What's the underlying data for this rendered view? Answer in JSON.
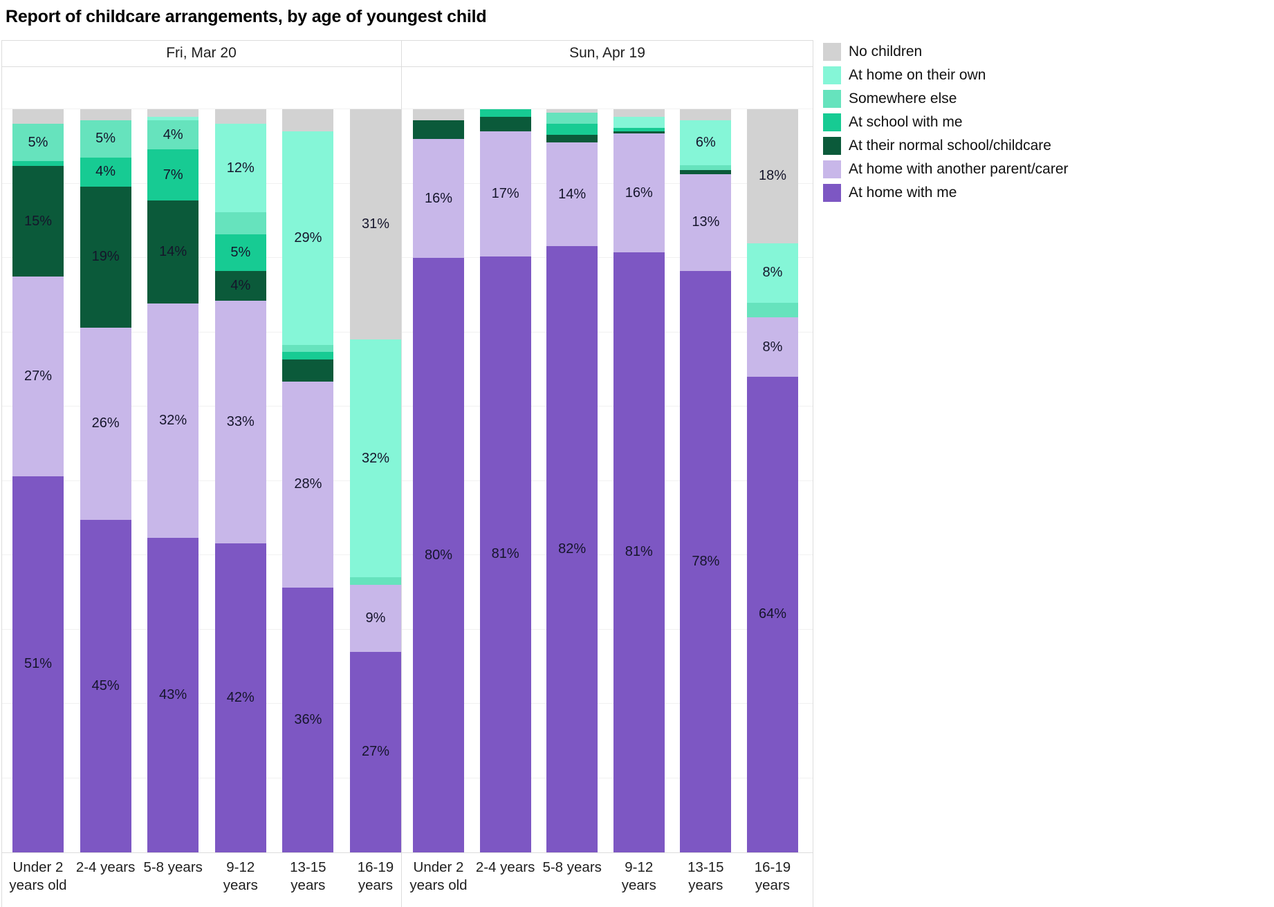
{
  "title": "Report of childcare arrangements, by age of youngest child",
  "palette": {
    "no_children": "#d2d2d2",
    "at_home_own": "#85f6d7",
    "somewhere_else": "#66e3bd",
    "at_school_with_me": "#17cb93",
    "at_their_normal_school": "#0b5a3a",
    "at_home_another_parent": "#c8b7e9",
    "at_home_with_me": "#7d57c3"
  },
  "legend": [
    {
      "key": "no_children",
      "label": "No children"
    },
    {
      "key": "at_home_own",
      "label": "At home on their own"
    },
    {
      "key": "somewhere_else",
      "label": "Somewhere else"
    },
    {
      "key": "at_school_with_me",
      "label": "At school with me"
    },
    {
      "key": "at_their_normal_school",
      "label": "At their normal school/childcare"
    },
    {
      "key": "at_home_another_parent",
      "label": "At home with another parent/carer"
    },
    {
      "key": "at_home_with_me",
      "label": "At home with me"
    }
  ],
  "chart_data": {
    "type": "bar",
    "variant": "stacked-100pct",
    "ylim": [
      0,
      105
    ],
    "grid": "horizontal lines every 10%",
    "legend_position": "top-right",
    "panels": [
      {
        "header": "Fri, Mar 20",
        "bars": [
          {
            "category": [
              "Under 2",
              "years old"
            ],
            "segments": [
              [
                "no_children",
                2,
                ""
              ],
              [
                "somewhere_else",
                5,
                "5%"
              ],
              [
                "at_school_with_me",
                0.7,
                ""
              ],
              [
                "at_their_normal_school",
                15,
                "15%"
              ],
              [
                "at_home_another_parent",
                27,
                "27%"
              ],
              [
                "at_home_with_me",
                51,
                "51%"
              ]
            ]
          },
          {
            "category": [
              "2-4 years"
            ],
            "segments": [
              [
                "no_children",
                1.5,
                ""
              ],
              [
                "somewhere_else",
                5,
                "5%"
              ],
              [
                "at_school_with_me",
                4,
                "4%"
              ],
              [
                "at_their_normal_school",
                19,
                "19%"
              ],
              [
                "at_home_another_parent",
                26,
                "26%"
              ],
              [
                "at_home_with_me",
                45,
                "45%"
              ]
            ]
          },
          {
            "category": [
              "5-8 years"
            ],
            "segments": [
              [
                "no_children",
                1,
                ""
              ],
              [
                "at_home_own",
                0.5,
                ""
              ],
              [
                "somewhere_else",
                4,
                "4%"
              ],
              [
                "at_school_with_me",
                7,
                "7%"
              ],
              [
                "at_their_normal_school",
                14,
                "14%"
              ],
              [
                "at_home_another_parent",
                32,
                "32%"
              ],
              [
                "at_home_with_me",
                43,
                "43%"
              ]
            ]
          },
          {
            "category": [
              "9-12",
              "years"
            ],
            "segments": [
              [
                "no_children",
                2,
                ""
              ],
              [
                "at_home_own",
                12,
                "12%"
              ],
              [
                "somewhere_else",
                3,
                ""
              ],
              [
                "at_school_with_me",
                5,
                "5%"
              ],
              [
                "at_their_normal_school",
                4,
                "4%"
              ],
              [
                "at_home_another_parent",
                33,
                "33%"
              ],
              [
                "at_home_with_me",
                42,
                "42%"
              ]
            ]
          },
          {
            "category": [
              "13-15",
              "years"
            ],
            "segments": [
              [
                "no_children",
                3,
                ""
              ],
              [
                "at_home_own",
                29,
                "29%"
              ],
              [
                "somewhere_else",
                1,
                ""
              ],
              [
                "at_school_with_me",
                1,
                ""
              ],
              [
                "at_their_normal_school",
                3,
                ""
              ],
              [
                "at_home_another_parent",
                28,
                "28%"
              ],
              [
                "at_home_with_me",
                36,
                "36%"
              ]
            ]
          },
          {
            "category": [
              "16-19",
              "years"
            ],
            "segments": [
              [
                "no_children",
                31,
                "31%"
              ],
              [
                "at_home_own",
                32,
                "32%"
              ],
              [
                "somewhere_else",
                1,
                ""
              ],
              [
                "at_home_another_parent",
                9,
                "9%"
              ],
              [
                "at_home_with_me",
                27,
                "27%"
              ]
            ]
          }
        ]
      },
      {
        "header": "Sun, Apr 19",
        "bars": [
          {
            "category": [
              "Under 2",
              "years old"
            ],
            "segments": [
              [
                "no_children",
                1.5,
                ""
              ],
              [
                "at_their_normal_school",
                2.5,
                ""
              ],
              [
                "at_home_another_parent",
                16,
                "16%"
              ],
              [
                "at_home_with_me",
                80,
                "80%"
              ]
            ]
          },
          {
            "category": [
              "2-4 years"
            ],
            "segments": [
              [
                "at_school_with_me",
                1,
                ""
              ],
              [
                "at_their_normal_school",
                2,
                ""
              ],
              [
                "at_home_another_parent",
                17,
                "17%"
              ],
              [
                "at_home_with_me",
                81,
                "81%"
              ]
            ]
          },
          {
            "category": [
              "5-8 years"
            ],
            "segments": [
              [
                "no_children",
                0.5,
                ""
              ],
              [
                "somewhere_else",
                1.5,
                ""
              ],
              [
                "at_school_with_me",
                1.5,
                ""
              ],
              [
                "at_their_normal_school",
                1,
                ""
              ],
              [
                "at_home_another_parent",
                14,
                "14%"
              ],
              [
                "at_home_with_me",
                82,
                "82%"
              ]
            ]
          },
          {
            "category": [
              "9-12",
              "years"
            ],
            "segments": [
              [
                "no_children",
                1,
                ""
              ],
              [
                "at_home_own",
                1.5,
                ""
              ],
              [
                "at_school_with_me",
                0.5,
                ""
              ],
              [
                "at_their_normal_school",
                0.3,
                ""
              ],
              [
                "at_home_another_parent",
                16,
                "16%"
              ],
              [
                "at_home_with_me",
                81,
                "81%"
              ]
            ]
          },
          {
            "category": [
              "13-15",
              "years"
            ],
            "segments": [
              [
                "no_children",
                1.5,
                ""
              ],
              [
                "at_home_own",
                6,
                "6%"
              ],
              [
                "somewhere_else",
                0.7,
                ""
              ],
              [
                "at_their_normal_school",
                0.5,
                ""
              ],
              [
                "at_home_another_parent",
                13,
                "13%"
              ],
              [
                "at_home_with_me",
                78,
                "78%"
              ]
            ]
          },
          {
            "category": [
              "16-19",
              "years"
            ],
            "segments": [
              [
                "no_children",
                18,
                "18%"
              ],
              [
                "at_home_own",
                8,
                "8%"
              ],
              [
                "somewhere_else",
                2,
                ""
              ],
              [
                "at_home_another_parent",
                8,
                "8%"
              ],
              [
                "at_home_with_me",
                64,
                "64%"
              ]
            ]
          }
        ]
      }
    ]
  }
}
